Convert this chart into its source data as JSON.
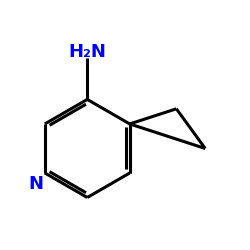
{
  "background_color": "#ffffff",
  "bond_color": "#000000",
  "heteroatom_color": "#0000ff",
  "line_width": 2.2,
  "figure_size": [
    2.5,
    2.5
  ],
  "dpi": 100,
  "fontsize_label": 13
}
